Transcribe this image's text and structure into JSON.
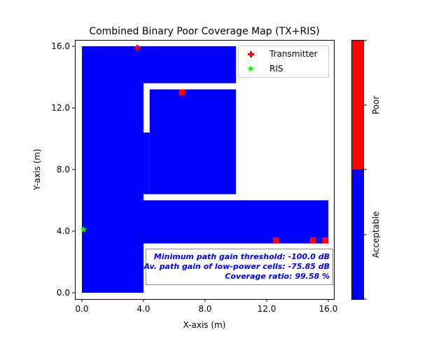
{
  "chart_data": {
    "type": "heatmap",
    "title": "Combined Binary Poor Coverage Map (TX+RIS)",
    "xlabel": "X-axis (m)",
    "ylabel": "Y-axis (m)",
    "xlim": [
      -0.4,
      16.4
    ],
    "ylim": [
      -0.4,
      16.4
    ],
    "xticks": [
      "0.0",
      "4.0",
      "8.0",
      "12.0",
      "16.0"
    ],
    "xtick_values": [
      0,
      4,
      8,
      12,
      16
    ],
    "yticks": [
      "0.0",
      "4.0",
      "8.0",
      "12.0",
      "16.0"
    ],
    "ytick_values": [
      0,
      4,
      8,
      12,
      16
    ],
    "grid": false,
    "acceptable_color": "#0000ff",
    "poor_color": "#ff0000",
    "acceptable_regions": [
      {
        "x": [
          0,
          4
        ],
        "y": [
          0,
          16
        ]
      },
      {
        "x": [
          4,
          10
        ],
        "y": [
          13.6,
          16
        ]
      },
      {
        "x": [
          4.4,
          10
        ],
        "y": [
          6.4,
          13.2
        ]
      },
      {
        "x": [
          4,
          4.4
        ],
        "y": [
          6.4,
          10.4
        ]
      },
      {
        "x": [
          4,
          16
        ],
        "y": [
          3.2,
          6.0
        ]
      }
    ],
    "poor_cells": [
      {
        "x": [
          6.3,
          6.7
        ],
        "y": [
          12.8,
          13.2
        ]
      },
      {
        "x": [
          12.4,
          12.8
        ],
        "y": [
          3.2,
          3.6
        ]
      },
      {
        "x": [
          14.8,
          15.2
        ],
        "y": [
          3.2,
          3.6
        ]
      },
      {
        "x": [
          15.6,
          16.0
        ],
        "y": [
          3.2,
          3.6
        ]
      }
    ],
    "markers": [
      {
        "name": "Transmitter",
        "x": 3.6,
        "y": 15.9,
        "symbol": "plus",
        "color": "#ff0000"
      },
      {
        "name": "RIS",
        "x": 0.1,
        "y": 4.1,
        "symbol": "star",
        "color": "#00ff00"
      }
    ],
    "legend_placement": "top-right",
    "annotation": [
      "Minimum path gain threshold: -100.0 dB",
      "Av. path gain of low-power cells: -75.85 dB",
      "Coverage ratio: 99.58 %"
    ],
    "annotation_color": "#0000ff",
    "colorbar": {
      "labels": [
        "Acceptable",
        "Poor"
      ],
      "colors": [
        "#0000ff",
        "#ff0000"
      ]
    }
  }
}
